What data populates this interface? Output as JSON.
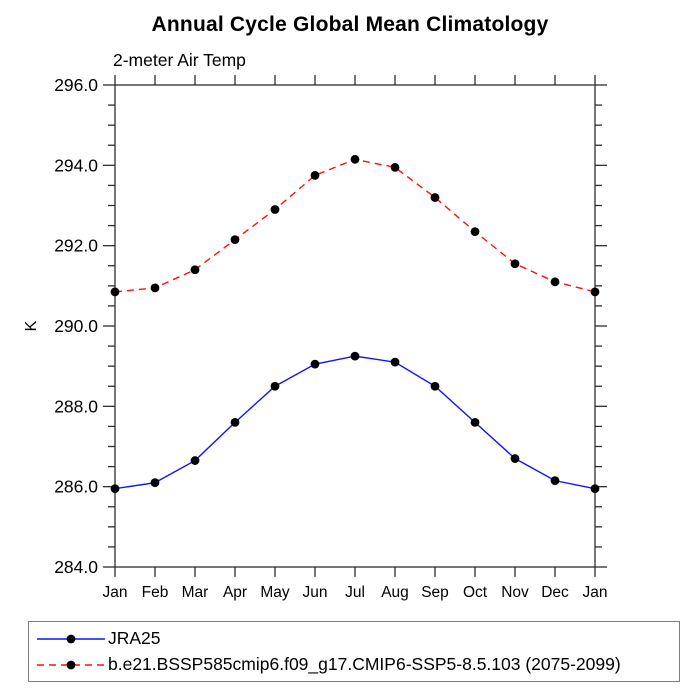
{
  "title": "Annual Cycle Global Mean Climatology",
  "subtitle": "2-meter Air Temp",
  "chart_data": {
    "type": "line",
    "x": [
      "Jan",
      "Feb",
      "Mar",
      "Apr",
      "May",
      "Jun",
      "Jul",
      "Aug",
      "Sep",
      "Oct",
      "Nov",
      "Dec",
      "Jan"
    ],
    "xlabel": "",
    "ylabel": "K",
    "ylim": [
      284.0,
      296.0
    ],
    "ytick_interval_major": 2.0,
    "ytick_interval_minor": 0.5,
    "ytick_labels": [
      "296.0",
      "294.0",
      "292.0",
      "290.0",
      "288.0",
      "286.0",
      "284.0"
    ],
    "grid": false,
    "legend_position": "bottom-box",
    "series": [
      {
        "name": "JRA25",
        "line_style": "solid",
        "color": "#1414f5",
        "marker": "filled-circle",
        "marker_color": "#000000",
        "values": [
          285.95,
          286.1,
          286.65,
          287.6,
          288.5,
          289.05,
          289.25,
          289.1,
          288.5,
          287.6,
          286.7,
          286.15,
          285.95
        ]
      },
      {
        "name": "b.e21.BSSP585cmip6.f09_g17.CMIP6-SSP5-8.5.103 (2075-2099)",
        "line_style": "dashed",
        "color": "#fb100c",
        "marker": "filled-circle",
        "marker_color": "#000000",
        "values": [
          290.85,
          290.95,
          291.4,
          292.15,
          292.9,
          293.75,
          294.15,
          293.95,
          293.2,
          292.35,
          291.55,
          291.1,
          290.85
        ]
      }
    ]
  },
  "colors": {
    "axis": "#2e2e2e",
    "text": "#000000",
    "legend_border": "#7d7d7d",
    "marker": "#000000"
  }
}
